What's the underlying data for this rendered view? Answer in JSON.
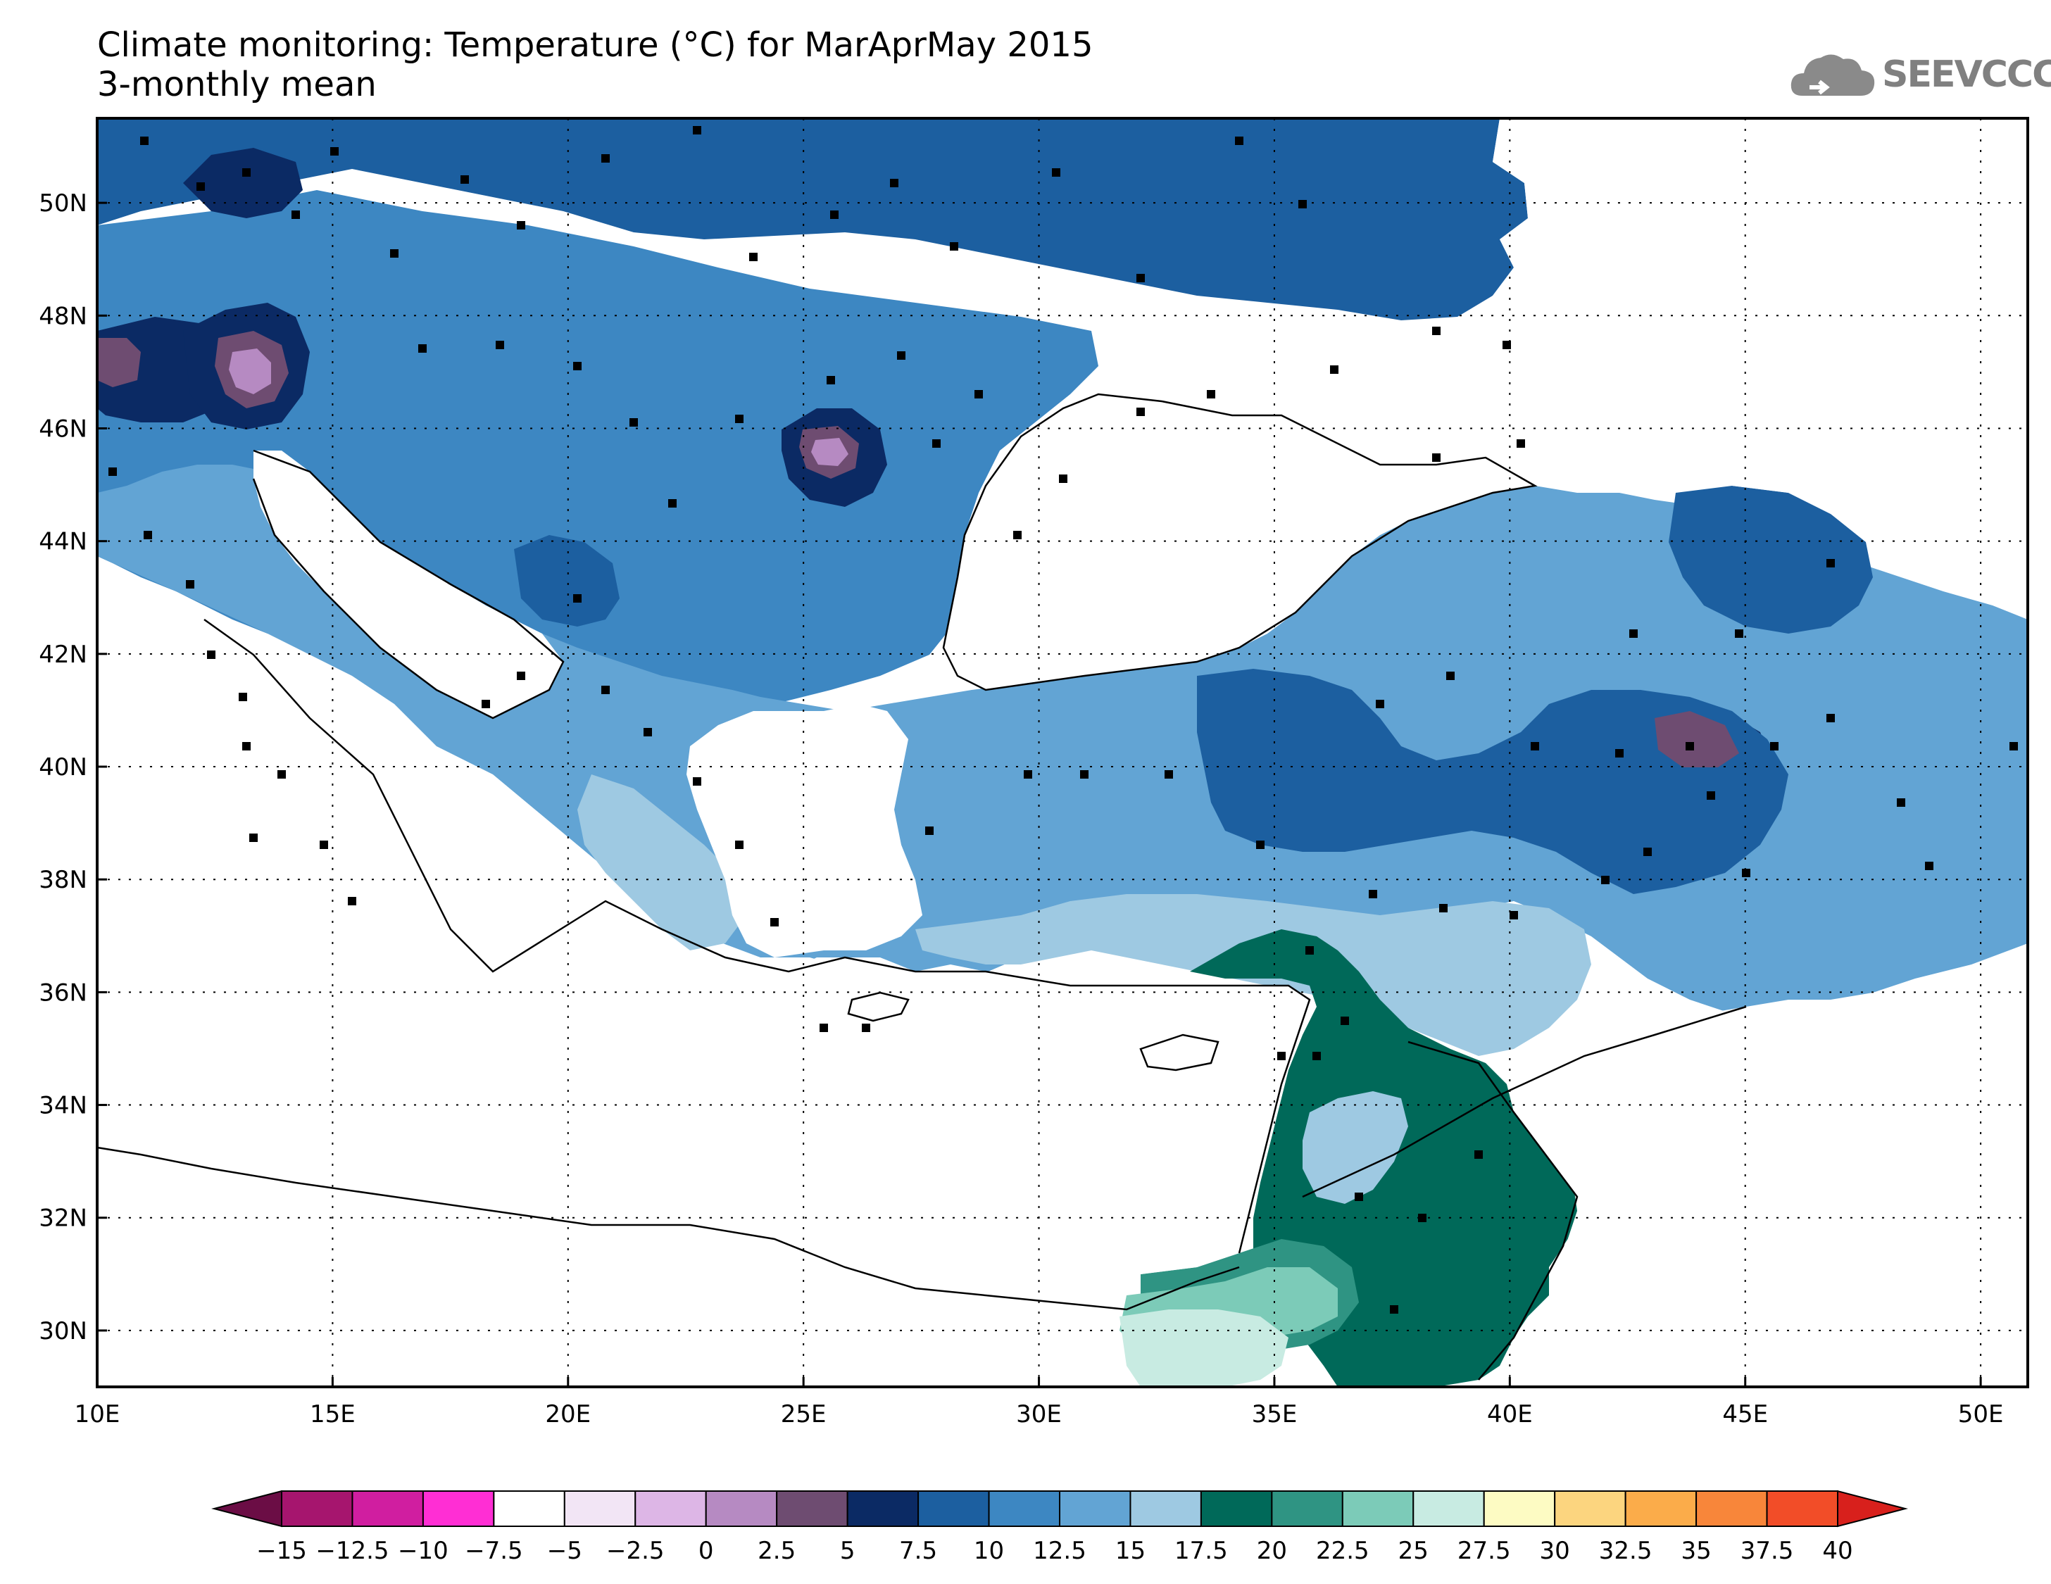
{
  "title": {
    "line1": "Climate monitoring: Temperature (°C) for MarAprMay 2015",
    "line2": "3-monthly mean"
  },
  "logo": {
    "text": "SEEVCCC",
    "icon": "cloud-icon",
    "color": "#808080"
  },
  "chart_data": {
    "type": "heatmap",
    "subtype": "filled-contour-map",
    "variable": "Temperature (°C)",
    "period": "MarAprMay 2015",
    "statistic": "3-monthly mean",
    "lon_range": [
      10,
      51
    ],
    "lat_range": [
      29,
      51.5
    ],
    "lon_ticks": [
      10,
      15,
      20,
      25,
      30,
      35,
      40,
      45,
      50
    ],
    "lon_tick_labels": [
      "10E",
      "15E",
      "20E",
      "25E",
      "30E",
      "35E",
      "40E",
      "45E",
      "50E"
    ],
    "lat_ticks": [
      30,
      32,
      34,
      36,
      38,
      40,
      42,
      44,
      46,
      48,
      50
    ],
    "lat_tick_labels": [
      "30N",
      "32N",
      "34N",
      "36N",
      "38N",
      "40N",
      "42N",
      "44N",
      "46N",
      "48N",
      "50N"
    ],
    "grid": "dotted",
    "legend": {
      "placement": "bottom",
      "labels": [
        "−15",
        "−12.5",
        "−10",
        "−7.5",
        "−5",
        "−2.5",
        "0",
        "2.5",
        "5",
        "7.5",
        "10",
        "12.5",
        "15",
        "17.5",
        "20",
        "22.5",
        "25",
        "27.5",
        "30",
        "32.5",
        "35",
        "37.5",
        "40"
      ],
      "colors": [
        "#6b0d45",
        "#a6156e",
        "#d01ea0",
        "#ff2ed4",
        "#ffffff",
        "#f2e5f5",
        "#ddb6e6",
        "#b68ac2",
        "#6e4c71",
        "#0b2a64",
        "#1c5fa0",
        "#3d87c2",
        "#62a4d4",
        "#9ec9e2",
        "#006959",
        "#2f9483",
        "#7ccbb8",
        "#c8ebe2",
        "#fdfbc3",
        "#fcd57f",
        "#fbac4a",
        "#f8863a",
        "#f24d28",
        "#d8201c"
      ]
    },
    "annotations": "black squares mark station locations"
  }
}
